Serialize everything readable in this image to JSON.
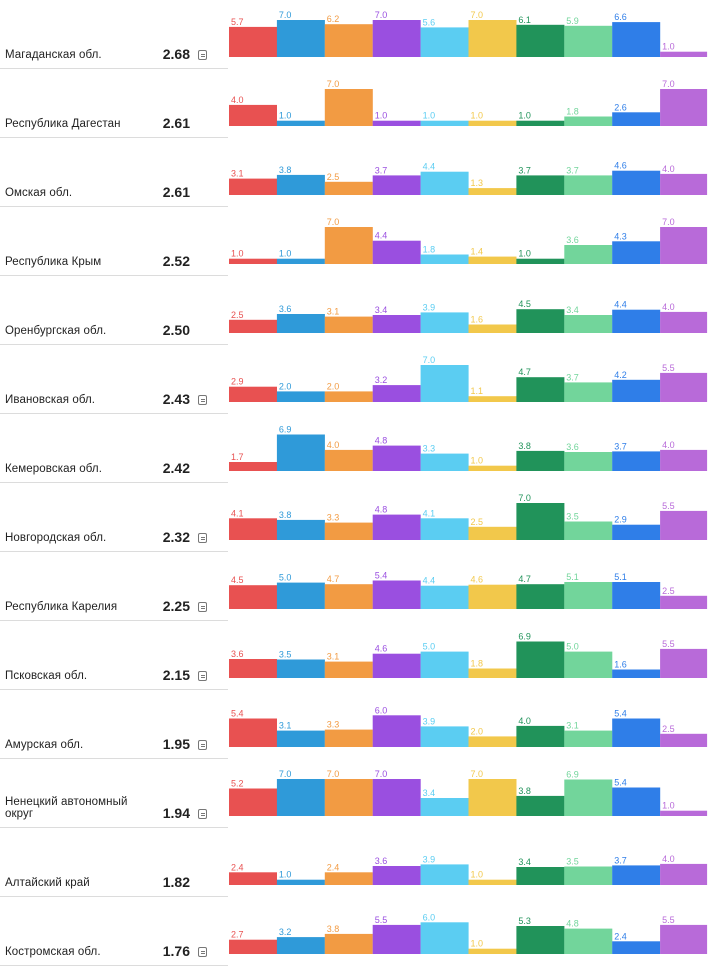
{
  "colors": [
    "#e85151",
    "#2f9ad9",
    "#f29b43",
    "#9a4fe0",
    "#5bcdf2",
    "#f2c84b",
    "#21935a",
    "#72d59b",
    "#2f7ee8",
    "#b86ad9"
  ],
  "chart_data": {
    "type": "bar",
    "title": "",
    "ylim": [
      0,
      7
    ],
    "rows": [
      {
        "region": "Магаданская обл.",
        "score": "2.68",
        "has_doc": true,
        "values": [
          5.7,
          7.0,
          6.2,
          7.0,
          5.6,
          7.0,
          6.1,
          5.9,
          6.6,
          1.0
        ]
      },
      {
        "region": "Республика Дагестан",
        "score": "2.61",
        "has_doc": false,
        "values": [
          4.0,
          1.0,
          7.0,
          1.0,
          1.0,
          1.0,
          1.0,
          1.8,
          2.6,
          7.0
        ]
      },
      {
        "region": "Омская обл.",
        "score": "2.61",
        "has_doc": false,
        "values": [
          3.1,
          3.8,
          2.5,
          3.7,
          4.4,
          1.3,
          3.7,
          3.7,
          4.6,
          4.0
        ]
      },
      {
        "region": "Республика Крым",
        "score": "2.52",
        "has_doc": false,
        "values": [
          1.0,
          1.0,
          7.0,
          4.4,
          1.8,
          1.4,
          1.0,
          3.6,
          4.3,
          7.0
        ]
      },
      {
        "region": "Оренбургская обл.",
        "score": "2.50",
        "has_doc": false,
        "values": [
          2.5,
          3.6,
          3.1,
          3.4,
          3.9,
          1.6,
          4.5,
          3.4,
          4.4,
          4.0
        ]
      },
      {
        "region": "Ивановская обл.",
        "score": "2.43",
        "has_doc": true,
        "values": [
          2.9,
          2.0,
          2.0,
          3.2,
          7.0,
          1.1,
          4.7,
          3.7,
          4.2,
          5.5
        ]
      },
      {
        "region": "Кемеровская обл.",
        "score": "2.42",
        "has_doc": false,
        "values": [
          1.7,
          6.9,
          4.0,
          4.8,
          3.3,
          1.0,
          3.8,
          3.6,
          3.7,
          4.0
        ]
      },
      {
        "region": "Новгородская обл.",
        "score": "2.32",
        "has_doc": true,
        "values": [
          4.1,
          3.8,
          3.3,
          4.8,
          4.1,
          2.5,
          7.0,
          3.5,
          2.9,
          5.5
        ]
      },
      {
        "region": "Республика Карелия",
        "score": "2.25",
        "has_doc": true,
        "values": [
          4.5,
          5.0,
          4.7,
          5.4,
          4.4,
          4.6,
          4.7,
          5.1,
          5.1,
          2.5
        ]
      },
      {
        "region": "Псковская обл.",
        "score": "2.15",
        "has_doc": true,
        "values": [
          3.6,
          3.5,
          3.1,
          4.6,
          5.0,
          1.8,
          6.9,
          5.0,
          1.6,
          5.5
        ]
      },
      {
        "region": "Амурская обл.",
        "score": "1.95",
        "has_doc": true,
        "values": [
          5.4,
          3.1,
          3.3,
          6.0,
          3.9,
          2.0,
          4.0,
          3.1,
          5.4,
          2.5
        ]
      },
      {
        "region": "Ненецкий автономный округ",
        "score": "1.94",
        "has_doc": true,
        "values": [
          5.2,
          7.0,
          7.0,
          7.0,
          3.4,
          7.0,
          3.8,
          6.9,
          5.4,
          1.0
        ]
      },
      {
        "region": "Алтайский край",
        "score": "1.82",
        "has_doc": false,
        "values": [
          2.4,
          1.0,
          2.4,
          3.6,
          3.9,
          1.0,
          3.4,
          3.5,
          3.7,
          4.0
        ]
      },
      {
        "region": "Костромская обл.",
        "score": "1.76",
        "has_doc": true,
        "values": [
          2.7,
          3.2,
          3.8,
          5.5,
          6.0,
          1.0,
          5.3,
          4.8,
          2.4,
          5.5
        ]
      }
    ]
  }
}
